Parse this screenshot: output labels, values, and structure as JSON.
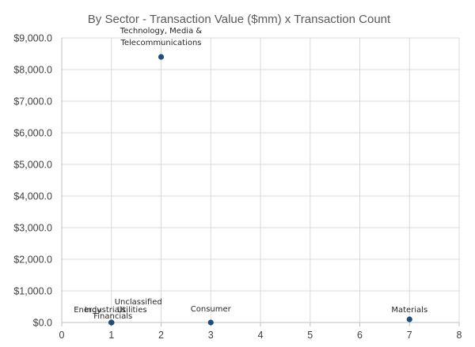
{
  "chart_data": {
    "type": "scatter",
    "title": "By Sector - Transaction Value ($mm) x Transaction Count",
    "xlabel": "",
    "ylabel": "",
    "xlim": [
      0,
      8
    ],
    "ylim": [
      0,
      9000
    ],
    "x_ticks": [
      "0",
      "1",
      "2",
      "3",
      "4",
      "5",
      "6",
      "7",
      "8"
    ],
    "y_ticks": [
      "$0.0",
      "$1,000.0",
      "$2,000.0",
      "$3,000.0",
      "$4,000.0",
      "$5,000.0",
      "$6,000.0",
      "$7,000.0",
      "$8,000.0",
      "$9,000.0"
    ],
    "grid": true,
    "legend": "none",
    "marker_color": "#1f4e79",
    "points": [
      {
        "label": "Technology, Media & Telecommunications",
        "x": 2,
        "y": 8400
      },
      {
        "label": "Consumer",
        "x": 3,
        "y": 0
      },
      {
        "label": "Materials",
        "x": 7,
        "y": 100
      },
      {
        "label": "Energy",
        "x": 1,
        "y": 0
      },
      {
        "label": "Industrials",
        "x": 1,
        "y": 0
      },
      {
        "label": "Utilities",
        "x": 1,
        "y": 0
      },
      {
        "label": "Unclassified",
        "x": 1,
        "y": 0
      },
      {
        "label": "Financials",
        "x": 1,
        "y": 0
      }
    ]
  }
}
